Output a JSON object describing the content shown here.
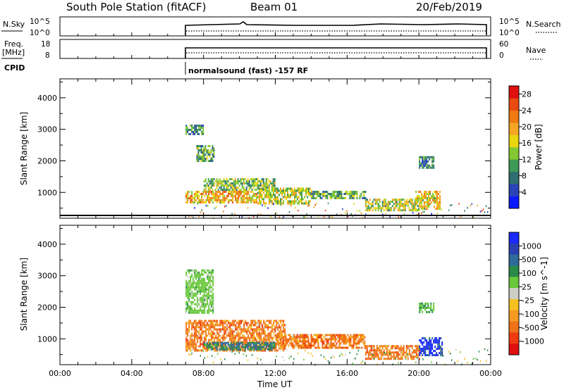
{
  "header": {
    "station": "South Pole Station (fitACF)",
    "beam": "Beam 01",
    "date": "20/Feb/2019"
  },
  "strip_panels": {
    "nsky": {
      "label": "N.Sky",
      "ticks": [
        "10^5",
        "10^0"
      ],
      "right_label": "N.Search",
      "right_ticks": [
        "10^5",
        "10^0"
      ]
    },
    "freq": {
      "label_line1": "Freq.",
      "label_line2": "[MHz]",
      "ticks": [
        "18",
        "8"
      ],
      "right_label": "Nave",
      "right_ticks": [
        "60",
        "0"
      ]
    },
    "cpid": {
      "label": "CPID",
      "text": "normalsound (fast) -157 RF"
    }
  },
  "colors": {
    "power_scale": [
      "#0a1aff",
      "#2a44b8",
      "#2e6e6e",
      "#3f9a58",
      "#84c832",
      "#e8d60e",
      "#f5a623",
      "#ef7a12",
      "#e84a10",
      "#e01010"
    ],
    "velocity_scale": [
      "#e01010",
      "#ef3a10",
      "#f07218",
      "#f59a20",
      "#f5c020",
      "#cfcfc8",
      "#68c83a",
      "#2a8a4a",
      "#2e6a9a",
      "#2a3fb0",
      "#1a2aff"
    ]
  },
  "chart_data": [
    {
      "type": "heatmap",
      "name": "power",
      "ylabel": "Slant Range [km]",
      "yticks": [
        "1000",
        "2000",
        "3000",
        "4000"
      ],
      "ylim": [
        180,
        4600
      ],
      "xticks": [
        "00:00",
        "04:00",
        "08:00",
        "12:00",
        "16:00",
        "20:00",
        "00:00"
      ],
      "xlim_hours": [
        0,
        24
      ],
      "colorbar": {
        "label": "Power [dB]",
        "ticks": [
          "4",
          "8",
          "12",
          "16",
          "20",
          "24",
          "28"
        ],
        "range": [
          0,
          30
        ]
      },
      "regions": [
        {
          "t": [
            7.0,
            8.0
          ],
          "r": [
            2850,
            3150
          ],
          "v": 9
        },
        {
          "t": [
            7.6,
            8.6
          ],
          "r": [
            2000,
            2500
          ],
          "v": 11
        },
        {
          "t": [
            7.0,
            11.0
          ],
          "r": [
            650,
            1050
          ],
          "v": 19
        },
        {
          "t": [
            8.0,
            12.0
          ],
          "r": [
            1050,
            1450
          ],
          "v": 13
        },
        {
          "t": [
            11.0,
            14.0
          ],
          "r": [
            650,
            1150
          ],
          "v": 15
        },
        {
          "t": [
            14.0,
            17.0
          ],
          "r": [
            800,
            1050
          ],
          "v": 11
        },
        {
          "t": [
            17.0,
            20.0
          ],
          "r": [
            450,
            800
          ],
          "v": 14
        },
        {
          "t": [
            19.8,
            21.2
          ],
          "r": [
            500,
            1050
          ],
          "v": 17
        },
        {
          "t": [
            20.0,
            20.8
          ],
          "r": [
            1800,
            2150
          ],
          "v": 8
        }
      ]
    },
    {
      "type": "heatmap",
      "name": "velocity",
      "ylabel": "Slant Range [km]",
      "yticks": [
        "1000",
        "2000",
        "3000",
        "4000"
      ],
      "ylim": [
        180,
        4600
      ],
      "xticks": [
        "00:00",
        "04:00",
        "08:00",
        "12:00",
        "16:00",
        "20:00",
        "00:00"
      ],
      "xlabel": "Time UT",
      "xlim_hours": [
        0,
        24
      ],
      "colorbar": {
        "label": "Velocity [m s^-1]",
        "ticks": [
          "1000",
          "500",
          "100",
          "25",
          "-25",
          "-100",
          "-500",
          "-1000"
        ]
      },
      "regions": [
        {
          "t": [
            7.0,
            8.5
          ],
          "r": [
            1800,
            3200
          ],
          "v": 0
        },
        {
          "t": [
            7.0,
            12.5
          ],
          "r": [
            650,
            1600
          ],
          "v": -300
        },
        {
          "t": [
            8.0,
            12.0
          ],
          "r": [
            650,
            900
          ],
          "v": 100
        },
        {
          "t": [
            12.0,
            17.0
          ],
          "r": [
            700,
            1150
          ],
          "v": -300
        },
        {
          "t": [
            17.0,
            20.0
          ],
          "r": [
            350,
            800
          ],
          "v": -300
        },
        {
          "t": [
            20.0,
            21.3
          ],
          "r": [
            450,
            1050
          ],
          "v": 700
        },
        {
          "t": [
            20.0,
            20.8
          ],
          "r": [
            1850,
            2150
          ],
          "v": 30
        }
      ]
    }
  ]
}
